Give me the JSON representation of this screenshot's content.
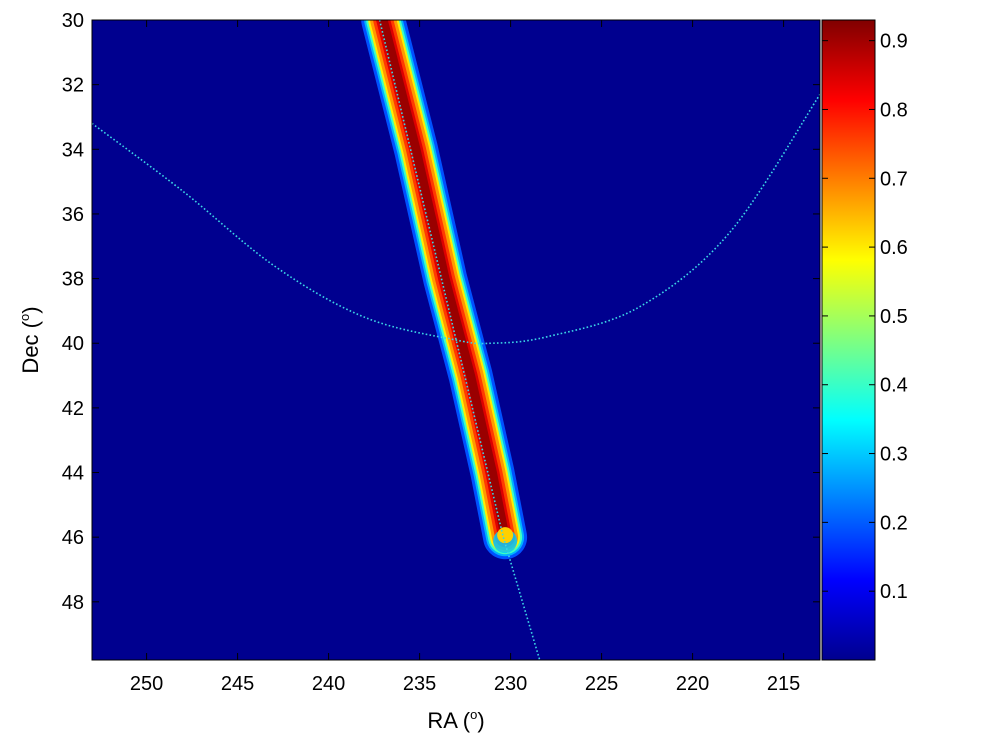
{
  "chart_data": {
    "type": "heatmap",
    "title": "",
    "xlabel": "RA",
    "xlabel_unit": "o",
    "ylabel": "Dec",
    "ylabel_unit": "o",
    "xlim": [
      253,
      213
    ],
    "ylim": [
      30,
      49.8
    ],
    "x_reversed": true,
    "y_reversed": true,
    "x_ticks": [
      250,
      245,
      240,
      235,
      230,
      225,
      220,
      215
    ],
    "y_ticks": [
      30,
      32,
      34,
      36,
      38,
      40,
      42,
      44,
      46,
      48
    ],
    "colormap": "jet",
    "background_color": "#00008f",
    "colorbar": {
      "min": 0.0,
      "max": 0.93,
      "ticks": [
        0.1,
        0.2,
        0.3,
        0.4,
        0.5,
        0.6,
        0.7,
        0.8,
        0.9
      ]
    },
    "band": {
      "description_points": [
        {
          "ra": 237.0,
          "dec": 30.0
        },
        {
          "ra": 235.2,
          "dec": 34.0
        },
        {
          "ra": 233.6,
          "dec": 38.0
        },
        {
          "ra": 232.2,
          "dec": 41.0
        },
        {
          "ra": 231.0,
          "dec": 44.0
        },
        {
          "ra": 230.3,
          "dec": 46.0
        }
      ],
      "peak_value": 0.93,
      "end_dec": 46.0
    },
    "overlays": [
      {
        "name": "arc",
        "style": "dotted",
        "color": "#3cd6e6",
        "points": [
          [
            253,
            33.2
          ],
          [
            248,
            35.3
          ],
          [
            243,
            37.6
          ],
          [
            238,
            39.2
          ],
          [
            233,
            39.9
          ],
          [
            231,
            40.0
          ],
          [
            228,
            39.8
          ],
          [
            223,
            38.9
          ],
          [
            218,
            36.6
          ],
          [
            213,
            32.3
          ]
        ]
      },
      {
        "name": "track",
        "style": "dotted",
        "color": "#3cd6e6",
        "points": [
          [
            237.2,
            30.0
          ],
          [
            230.4,
            46.0
          ],
          [
            228.4,
            49.8
          ]
        ]
      }
    ]
  }
}
